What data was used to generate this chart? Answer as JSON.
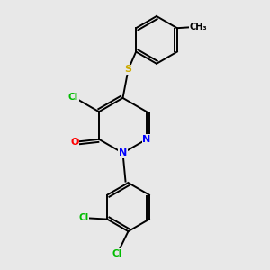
{
  "bg_color": "#e8e8e8",
  "bond_color": "#000000",
  "atom_colors": {
    "Cl": "#00bb00",
    "N": "#0000ff",
    "O": "#ff0000",
    "S": "#ccaa00",
    "C": "#000000"
  },
  "figsize": [
    3.0,
    3.0
  ],
  "dpi": 100,
  "lw": 1.4,
  "fs": 7.5
}
